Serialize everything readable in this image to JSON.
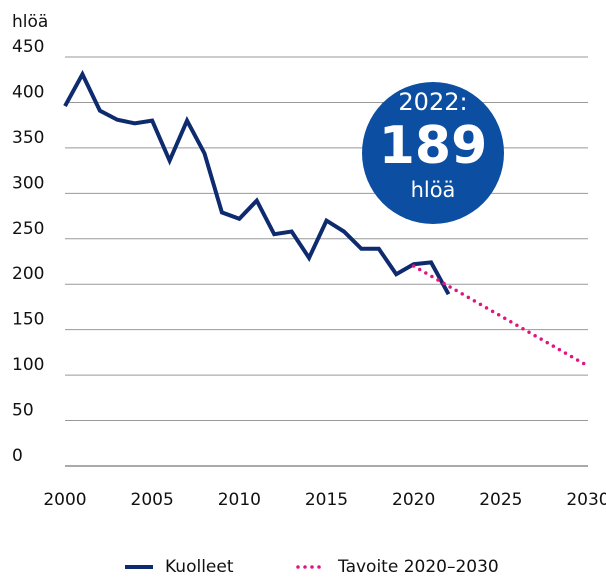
{
  "chart_data": {
    "type": "line",
    "y_unit": "hlöä",
    "xlim": [
      2000,
      2030
    ],
    "xticks": [
      2000,
      2005,
      2010,
      2015,
      2020,
      2025,
      2030
    ],
    "ylim": [
      0,
      450
    ],
    "yticks": [
      0,
      50,
      100,
      150,
      200,
      250,
      300,
      350,
      400,
      450
    ],
    "grid": true,
    "series": [
      {
        "name": "Kuolleet",
        "color": "#0d2b6e",
        "style": "solid",
        "x": [
          2000,
          2001,
          2002,
          2003,
          2004,
          2005,
          2006,
          2007,
          2008,
          2009,
          2010,
          2011,
          2012,
          2013,
          2014,
          2015,
          2016,
          2017,
          2018,
          2019,
          2020,
          2021,
          2022
        ],
        "values": [
          396,
          431,
          391,
          381,
          377,
          380,
          336,
          380,
          344,
          279,
          272,
          292,
          255,
          258,
          229,
          270,
          258,
          239,
          239,
          211,
          222,
          224,
          189
        ]
      },
      {
        "name": "Tavoite 2020–2030",
        "color": "#e0157f",
        "style": "dotted",
        "x": [
          2020,
          2030
        ],
        "values": [
          220,
          110
        ]
      }
    ],
    "annotation": {
      "label": "2022:",
      "value": 189,
      "unit": "hlöä",
      "color": "#0b4ea2"
    }
  }
}
